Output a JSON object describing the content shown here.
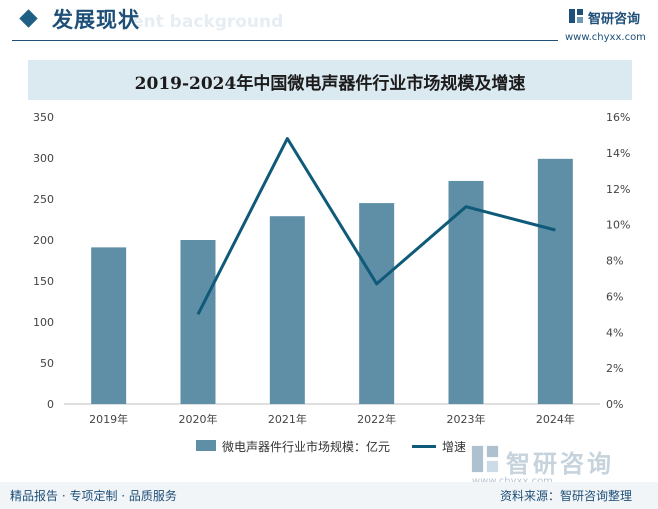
{
  "header": {
    "title": "发展现状",
    "ghost_text": "ent background",
    "logo_text": "智研咨询",
    "logo_url": "www.chyxx.com"
  },
  "chart_data": {
    "type": "bar",
    "title": "2019-2024年中国微电声器件行业市场规模及增速",
    "categories": [
      "2019年",
      "2020年",
      "2021年",
      "2022年",
      "2023年",
      "2024年"
    ],
    "series": [
      {
        "name": "微电声器件行业市场规模：亿元",
        "type": "bar",
        "axis": "left",
        "color": "#5f8ea7",
        "values": [
          191,
          200,
          229,
          245,
          272,
          299
        ]
      },
      {
        "name": "增速",
        "type": "line",
        "axis": "right",
        "color": "#0f5a78",
        "values": [
          null,
          5.0,
          14.8,
          6.7,
          11.0,
          9.7
        ]
      }
    ],
    "y_left": {
      "min": 0,
      "max": 350,
      "ticks": [
        "0",
        "50",
        "100",
        "150",
        "200",
        "250",
        "300",
        "350"
      ]
    },
    "y_right": {
      "min": 0,
      "max": 16,
      "ticks": [
        "0%",
        "2%",
        "4%",
        "6%",
        "8%",
        "10%",
        "12%",
        "14%",
        "16%"
      ]
    },
    "grid": false,
    "legend": "bottom"
  },
  "watermark": {
    "text": "智研咨询",
    "url": "www.chyxx.com"
  },
  "footer": {
    "left": "精品报告 · 专项定制 · 品质服务",
    "right": "资料来源：智研咨询整理"
  }
}
